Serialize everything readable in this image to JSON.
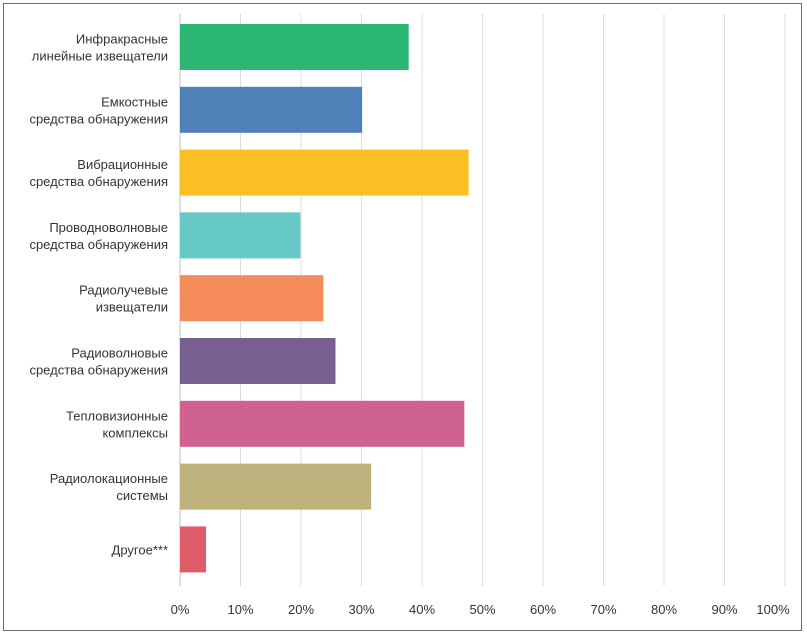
{
  "chart_data": {
    "type": "bar",
    "orientation": "horizontal",
    "title": "",
    "xlabel": "",
    "ylabel": "",
    "xlim": [
      0,
      100
    ],
    "grid": true,
    "categories": [
      [
        "Инфракрасные",
        "линейные извещатели"
      ],
      [
        "Емкостные",
        "средства обнаружения"
      ],
      [
        "Вибрационные",
        "средства обнаружения"
      ],
      [
        "Проводноволновые",
        "средства обнаружения"
      ],
      [
        "Радиолучевые",
        "извещатели"
      ],
      [
        "Радиоволновые",
        "средства обнаружения"
      ],
      [
        "Тепловизионные",
        "комплексы"
      ],
      [
        "Радиолокационные",
        "системы"
      ],
      [
        "Другое***"
      ]
    ],
    "values": [
      37.8,
      30.1,
      47.7,
      19.9,
      23.7,
      25.7,
      47.0,
      31.6,
      4.3
    ],
    "colors": [
      "#2bb673",
      "#4f80b8",
      "#fbbf24",
      "#67c8c8",
      "#f58a5a",
      "#77608f",
      "#d06292",
      "#bfb17b",
      "#df5b67"
    ],
    "x_ticks": [
      "0%",
      "10%",
      "20%",
      "30%",
      "40%",
      "50%",
      "60%",
      "70%",
      "80%",
      "90%",
      "100%"
    ]
  }
}
